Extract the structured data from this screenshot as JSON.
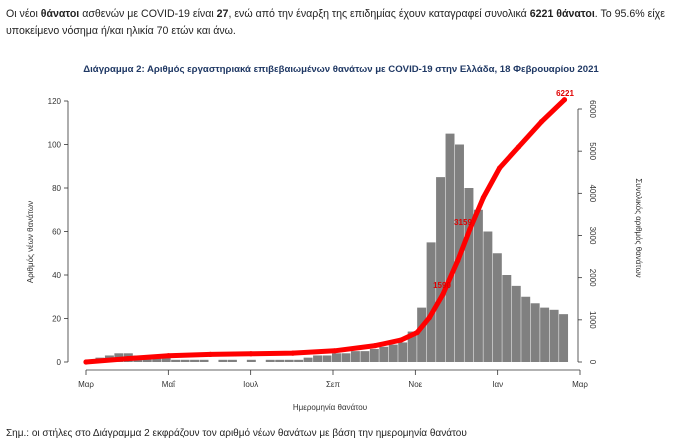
{
  "paragraph": {
    "t1": "Οι νέοι ",
    "t2": "θάνατοι",
    "t3": " ασθενών με COVID-19 είναι ",
    "t4": "27",
    "t5": ", ενώ από την έναρξη της επιδημίας έχουν καταγραφεί συνολικά ",
    "t6": "6221 θάνατοι",
    "t7": ".  Το 95.6% είχε υποκείμενο νόσημα ή/και ηλικία 70 ετών και άνω."
  },
  "note": "Σημ.: οι στήλες στο Διάγραμμα 2 εκφράζουν τον αριθμό νέων θανάτων με βάση την ημερομηνία θανάτου",
  "chart_data": {
    "type": "bar",
    "title": "Διάγραμμα 2: Αριθμός εργαστηριακά επιβεβαιωμένων θανάτων με COVID-19 στην Ελλάδα, 18 Φεβρουαρίου 2021",
    "xlabel": "Ημερομηνία θανάτου",
    "ylabel": "Αριθμός νέων θανάτων",
    "y2label": "Συνολικός αριθμός θανάτων",
    "x_ticks": [
      "Μαρ",
      "Μαΐ",
      "Ιουλ",
      "Σεπ",
      "Νοε",
      "Ιαν",
      "Μαρ"
    ],
    "ylim": [
      0,
      120
    ],
    "y_ticks": [
      0,
      20,
      40,
      60,
      80,
      100,
      120
    ],
    "y2lim": [
      0,
      6000
    ],
    "y2_ticks": [
      0,
      1000,
      2000,
      3000,
      4000,
      5000,
      6000
    ],
    "y2_tick_labels": [
      "0",
      "1000",
      "2000",
      "3000",
      "4000",
      "5000",
      "6000"
    ],
    "bar_color": "#808080",
    "line_color": "#ff0000",
    "weekly_new_deaths": {
      "week_start": [
        "2020-03-01",
        "2020-03-08",
        "2020-03-15",
        "2020-03-22",
        "2020-03-29",
        "2020-04-05",
        "2020-04-12",
        "2020-04-19",
        "2020-04-26",
        "2020-05-03",
        "2020-05-10",
        "2020-05-17",
        "2020-05-24",
        "2020-05-31",
        "2020-06-07",
        "2020-06-14",
        "2020-06-21",
        "2020-06-28",
        "2020-07-05",
        "2020-07-12",
        "2020-07-19",
        "2020-07-26",
        "2020-08-02",
        "2020-08-09",
        "2020-08-16",
        "2020-08-23",
        "2020-08-30",
        "2020-09-06",
        "2020-09-13",
        "2020-09-20",
        "2020-09-27",
        "2020-10-04",
        "2020-10-11",
        "2020-10-18",
        "2020-10-25",
        "2020-11-01",
        "2020-11-08",
        "2020-11-15",
        "2020-11-22",
        "2020-11-29",
        "2020-12-06",
        "2020-12-13",
        "2020-12-20",
        "2020-12-27",
        "2021-01-03",
        "2021-01-10",
        "2021-01-17",
        "2021-01-24",
        "2021-01-31",
        "2021-02-07",
        "2021-02-14"
      ],
      "deaths_per_day": [
        1,
        2,
        3,
        4,
        4,
        3,
        3,
        2,
        2,
        1,
        1,
        1,
        1,
        0,
        1,
        1,
        0,
        1,
        0,
        1,
        1,
        1,
        1,
        2,
        3,
        3,
        4,
        4,
        5,
        5,
        6,
        7,
        8,
        9,
        14,
        25,
        55,
        85,
        105,
        100,
        80,
        70,
        60,
        50,
        40,
        35,
        30,
        27,
        25,
        24,
        22
      ]
    },
    "cumulative_deaths": {
      "date": [
        "2020-03-01",
        "2020-04-01",
        "2020-05-01",
        "2020-06-01",
        "2020-07-01",
        "2020-08-01",
        "2020-09-01",
        "2020-10-01",
        "2020-10-20",
        "2020-11-01",
        "2020-11-10",
        "2020-11-20",
        "2020-12-01",
        "2020-12-10",
        "2020-12-20",
        "2021-01-01",
        "2021-01-15",
        "2021-02-01",
        "2021-02-18"
      ],
      "value": [
        0,
        80,
        150,
        180,
        195,
        210,
        265,
        390,
        520,
        700,
        1050,
        1600,
        2400,
        3150,
        3900,
        4600,
        5100,
        5700,
        6221
      ]
    },
    "annotations": [
      "6221",
      "3159",
      "1590"
    ]
  }
}
